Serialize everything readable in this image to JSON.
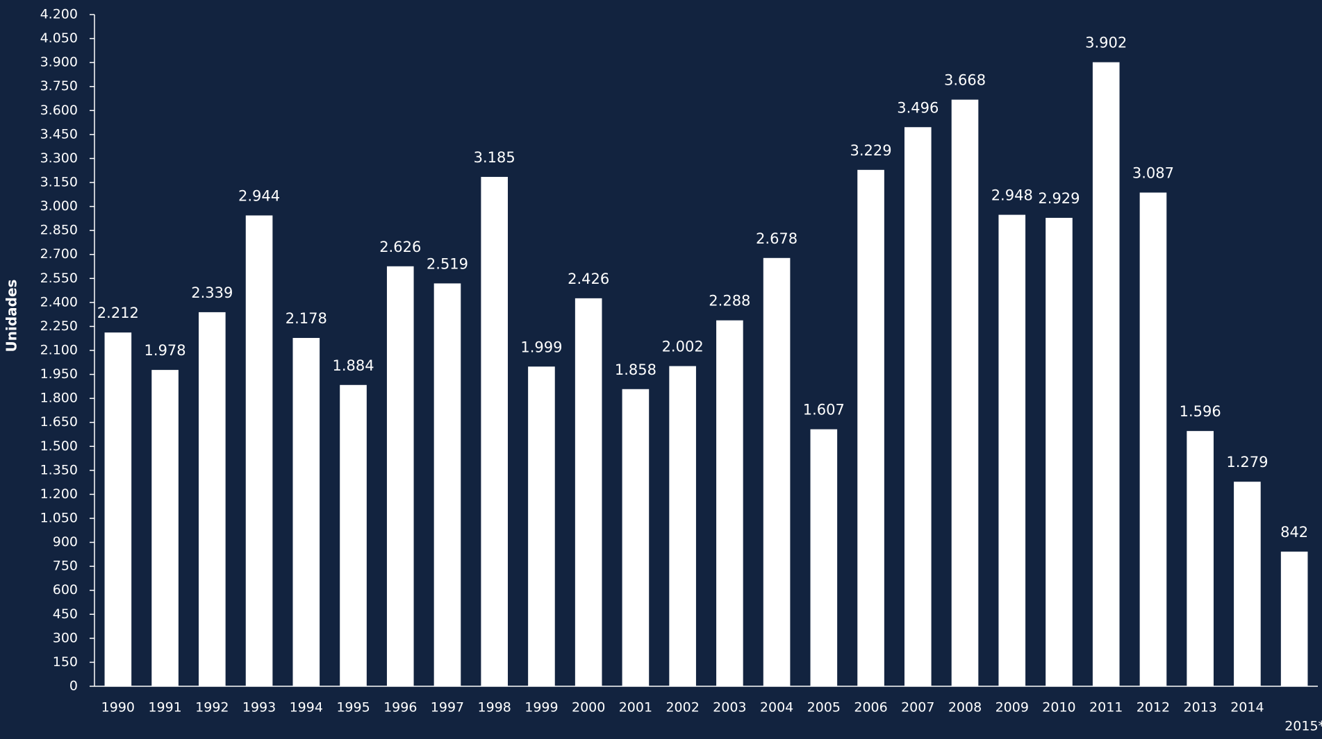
{
  "chart_data": {
    "type": "bar",
    "y_label": "Unidades",
    "categories": [
      "1990",
      "1991",
      "1992",
      "1993",
      "1994",
      "1995",
      "1996",
      "1997",
      "1998",
      "1999",
      "2000",
      "2001",
      "2002",
      "2003",
      "2004",
      "2005",
      "2006",
      "2007",
      "2008",
      "2009",
      "2010",
      "2011",
      "2012",
      "2013",
      "2014",
      "2015*"
    ],
    "values": [
      2212,
      1978,
      2339,
      2944,
      2178,
      1884,
      2626,
      2519,
      3185,
      1999,
      2426,
      1858,
      2002,
      2288,
      2678,
      1607,
      3229,
      3496,
      3668,
      2948,
      2929,
      3902,
      3087,
      1596,
      1279,
      842
    ],
    "value_labels": [
      "2.212",
      "1.978",
      "2.339",
      "2.944",
      "2.178",
      "1.884",
      "2.626",
      "2.519",
      "3.185",
      "1.999",
      "2.426",
      "1.858",
      "2.002",
      "2.288",
      "2.678",
      "1.607",
      "3.229",
      "3.496",
      "3.668",
      "2.948",
      "2.929",
      "3.902",
      "3.087",
      "1.596",
      "1.279",
      "842"
    ],
    "color": "#ffffff",
    "ylim": [
      0,
      4200
    ],
    "yticks": [
      0,
      150,
      300,
      450,
      600,
      750,
      900,
      {
        "value": 1050,
        "label": "1.050"
      },
      {
        "value": 1200,
        "label": "1.200"
      },
      {
        "value": 1350,
        "label": "1.350"
      },
      {
        "value": 1500,
        "label": "1.500"
      },
      {
        "value": 1650,
        "label": "1.650"
      },
      {
        "value": 1800,
        "label": "1.800"
      },
      {
        "value": 1950,
        "label": "1.950"
      },
      {
        "value": 2100,
        "label": "2.100"
      },
      {
        "value": 2250,
        "label": "2.250"
      },
      {
        "value": 2400,
        "label": "2.400"
      },
      {
        "value": 2550,
        "label": "2.550"
      },
      {
        "value": 2700,
        "label": "2.700"
      },
      {
        "value": 2850,
        "label": "2.850"
      },
      {
        "value": 3000,
        "label": "3.000"
      },
      {
        "value": 3150,
        "label": "3.150"
      },
      {
        "value": 3300,
        "label": "3.300"
      },
      {
        "value": 3450,
        "label": "3.450"
      },
      {
        "value": 3600,
        "label": "3.600"
      },
      {
        "value": 3750,
        "label": "3.750"
      },
      {
        "value": 3900,
        "label": "3.900"
      },
      {
        "value": 4050,
        "label": "4.050"
      },
      {
        "value": 4200,
        "label": "4.200"
      }
    ],
    "grid": false
  }
}
